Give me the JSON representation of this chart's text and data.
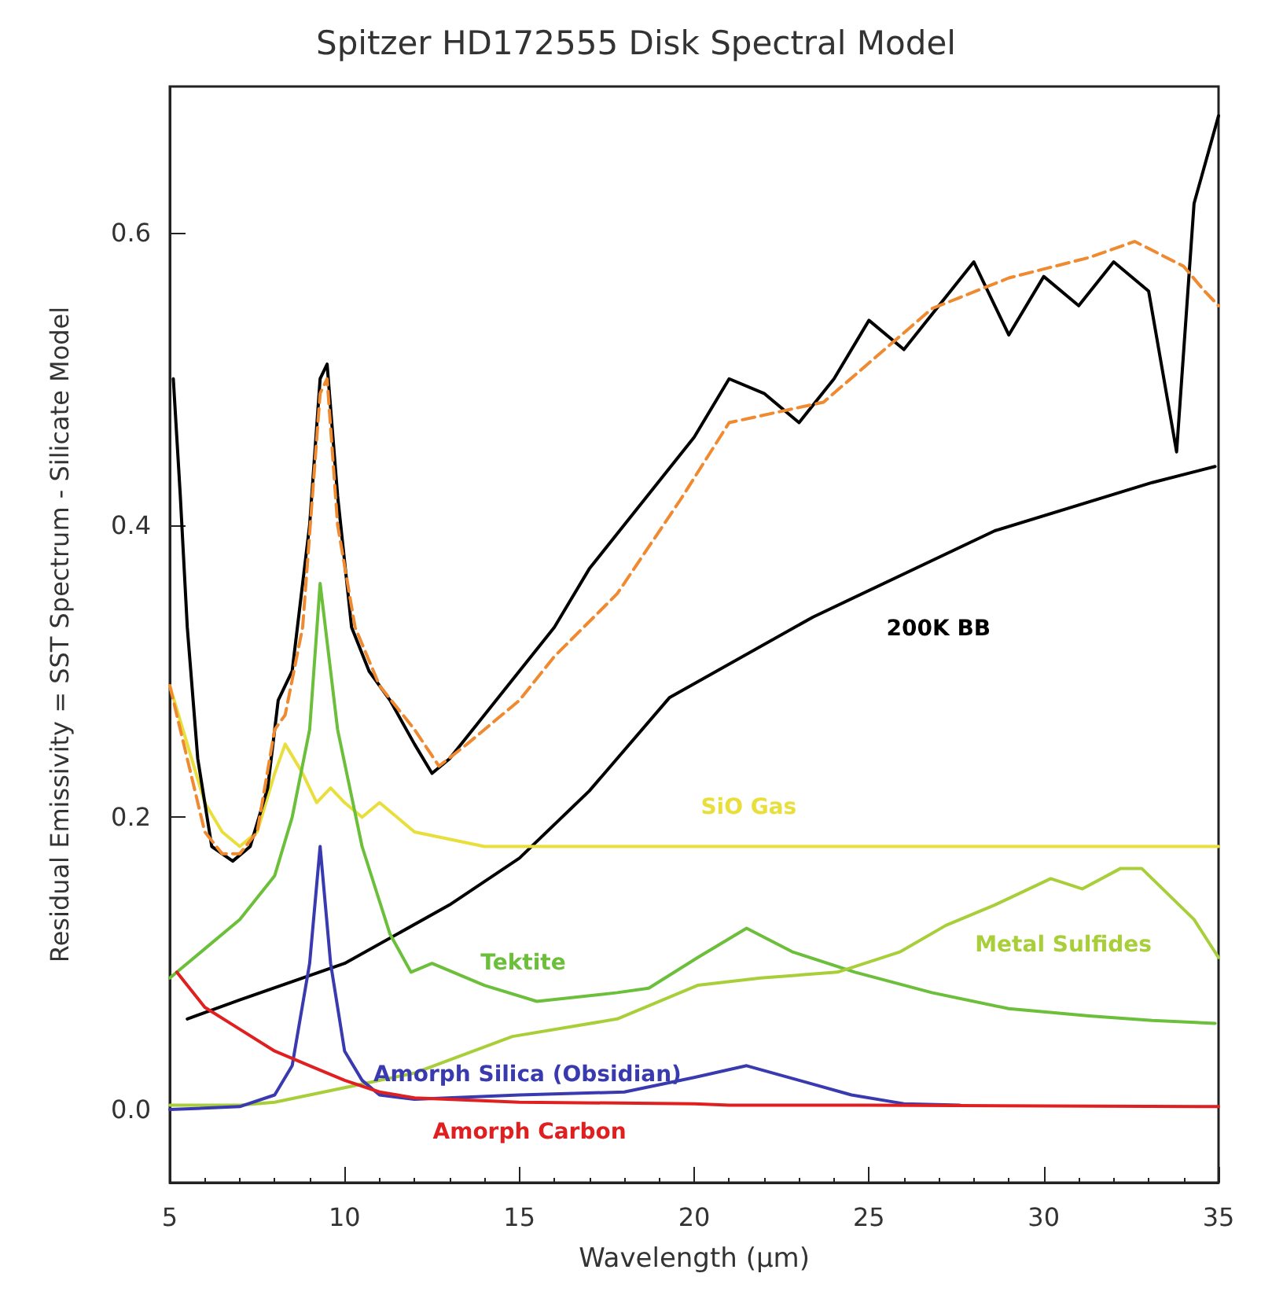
{
  "chart_data": {
    "type": "line",
    "title": "Spitzer HD172555 Disk Spectral Model",
    "xlabel": "Wavelength (µm)",
    "ylabel": "Residual Emissivity = SST Spectrum - Silicate Model",
    "xlim": [
      5,
      35
    ],
    "xticks": [
      5,
      10,
      15,
      20,
      25,
      30,
      35
    ],
    "ylim": [
      -0.05,
      0.7
    ],
    "yticks": [
      {
        "value": 0,
        "label": "0.0"
      },
      {
        "value": 0.2,
        "label": "0.2"
      },
      {
        "value": 0.4,
        "label": "0.4"
      },
      {
        "value": 0.6,
        "label": "0.6"
      }
    ],
    "grid": false,
    "marker": "none",
    "line_style": "solid",
    "series": [
      {
        "color": "#000000",
        "x": [
          5.5,
          7,
          10,
          13,
          15,
          17,
          19.3,
          23.4,
          28.6,
          33.1,
          34.9
        ],
        "values": [
          0.062,
          0.075,
          0.1,
          0.14,
          0.172,
          0.218,
          0.282,
          0.337,
          0.396,
          0.429,
          0.44
        ]
      },
      {
        "color": "#e8df3c",
        "x": [
          5,
          5.5,
          6,
          6.5,
          7,
          7.5,
          8,
          8.3,
          8.8,
          9.2,
          9.6,
          10,
          10.5,
          11,
          11.5,
          12,
          13,
          14,
          20,
          25,
          30,
          35
        ],
        "values": [
          0.29,
          0.25,
          0.21,
          0.19,
          0.18,
          0.19,
          0.23,
          0.25,
          0.23,
          0.21,
          0.22,
          0.21,
          0.2,
          0.21,
          0.2,
          0.19,
          0.185,
          0.18,
          0.18,
          0.18,
          0.18,
          0.18
        ]
      },
      {
        "color": "#6cbf3a",
        "x": [
          5,
          6,
          7,
          8,
          8.5,
          9,
          9.3,
          9.8,
          10.5,
          11.3,
          11.9,
          12.5,
          14,
          15.5,
          17.8,
          18.7,
          20.1,
          21.5,
          22.8,
          24.6,
          26.8,
          29,
          31.3,
          33.1,
          34.9
        ],
        "values": [
          0.09,
          0.11,
          0.13,
          0.16,
          0.2,
          0.26,
          0.36,
          0.26,
          0.18,
          0.12,
          0.094,
          0.1,
          0.085,
          0.074,
          0.08,
          0.083,
          0.104,
          0.124,
          0.108,
          0.094,
          0.08,
          0.069,
          0.064,
          0.061,
          0.059
        ]
      },
      {
        "color": "#a8cf3a",
        "x": [
          5,
          7,
          8,
          10,
          12,
          14.8,
          17.8,
          20.1,
          21.9,
          24.1,
          25.9,
          27.2,
          28.6,
          30.2,
          31.1,
          32.2,
          32.8,
          33.4,
          34.3,
          35
        ],
        "values": [
          0.003,
          0.003,
          0.005,
          0.015,
          0.025,
          0.05,
          0.062,
          0.085,
          0.09,
          0.094,
          0.108,
          0.126,
          0.14,
          0.158,
          0.151,
          0.165,
          0.165,
          0.151,
          0.13,
          0.104
        ]
      },
      {
        "color": "#3a3ab0",
        "x": [
          5,
          7,
          8,
          8.5,
          9,
          9.3,
          9.6,
          10,
          10.5,
          11,
          12,
          15,
          18,
          20,
          21.5,
          23,
          24.5,
          26,
          27.6
        ],
        "values": [
          0,
          0.002,
          0.01,
          0.03,
          0.1,
          0.18,
          0.1,
          0.04,
          0.02,
          0.01,
          0.007,
          0.01,
          0.012,
          0.022,
          0.03,
          0.02,
          0.01,
          0.004,
          0.003
        ]
      },
      {
        "color": "#e02020",
        "x": [
          5.2,
          6,
          7,
          8,
          9,
          10,
          11,
          12,
          15,
          20,
          21,
          25,
          35
        ],
        "values": [
          0.094,
          0.07,
          0.055,
          0.04,
          0.03,
          0.02,
          0.012,
          0.008,
          0.005,
          0.004,
          0.003,
          0.003,
          0.002
        ]
      },
      {
        "color": "#000000",
        "x": [
          5.1,
          5.3,
          5.5,
          5.8,
          6.2,
          6.8,
          7.3,
          7.8,
          8.1,
          8.5,
          9,
          9.3,
          9.5,
          9.8,
          10.2,
          10.7,
          11.3,
          12,
          12.5,
          13,
          14,
          15,
          16,
          17,
          18,
          19,
          20,
          21,
          22,
          23,
          24,
          25,
          26,
          27,
          28,
          29,
          30,
          31,
          32,
          33,
          33.8,
          34.3,
          35
        ],
        "values": [
          0.5,
          0.42,
          0.33,
          0.24,
          0.18,
          0.17,
          0.18,
          0.22,
          0.28,
          0.3,
          0.4,
          0.5,
          0.51,
          0.42,
          0.33,
          0.3,
          0.28,
          0.25,
          0.23,
          0.24,
          0.27,
          0.3,
          0.33,
          0.37,
          0.4,
          0.43,
          0.46,
          0.5,
          0.49,
          0.47,
          0.5,
          0.54,
          0.52,
          0.55,
          0.58,
          0.53,
          0.57,
          0.55,
          0.58,
          0.56,
          0.45,
          0.62,
          0.68
        ]
      },
      {
        "color": "#f08a30",
        "line_style": "dashed",
        "x": [
          5,
          5.5,
          6,
          6.5,
          7,
          7.5,
          8,
          8.3,
          8.8,
          9.3,
          9.5,
          9.8,
          10.3,
          11,
          12,
          12.7,
          13.5,
          15,
          16,
          17.8,
          19.6,
          21,
          23.7,
          26.8,
          29,
          31.3,
          32.6,
          34,
          34.6,
          35
        ],
        "values": [
          0.29,
          0.24,
          0.19,
          0.175,
          0.175,
          0.19,
          0.26,
          0.27,
          0.33,
          0.49,
          0.5,
          0.4,
          0.33,
          0.29,
          0.26,
          0.235,
          0.25,
          0.28,
          0.31,
          0.353,
          0.417,
          0.47,
          0.484,
          0.548,
          0.569,
          0.583,
          0.594,
          0.577,
          0.56,
          0.55
        ]
      }
    ],
    "annotations": [
      "200K BB",
      "SiO Gas",
      "Tektite",
      "Metal Sulfides",
      "Amorph Silica (Obsidian)",
      "Amorph Carbon"
    ]
  }
}
